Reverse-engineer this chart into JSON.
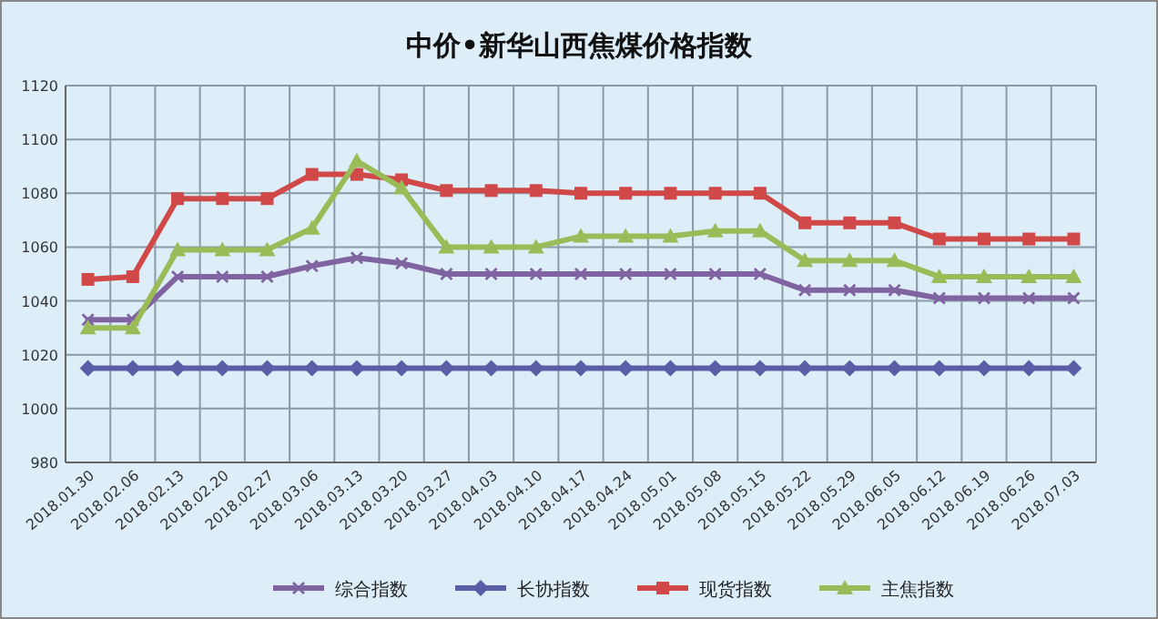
{
  "chart_data": {
    "type": "line",
    "title": "中价•新华山西焦煤价格指数",
    "categories": [
      "2018.01.30",
      "2018.02.06",
      "2018.02.13",
      "2018.02.20",
      "2018.02.27",
      "2018.03.06",
      "2018.03.13",
      "2018.03.20",
      "2018.03.27",
      "2018.04.03",
      "2018.04.10",
      "2018.04.17",
      "2018.04.24",
      "2018.05.01",
      "2018.05.08",
      "2018.05.15",
      "2018.05.22",
      "2018.05.29",
      "2018.06.05",
      "2018.06.12",
      "2018.06.19",
      "2018.06.26",
      "2018.07.03"
    ],
    "series": [
      {
        "name": "综合指数",
        "color": "#8064a2",
        "marker": "cross",
        "values": [
          1033,
          1033,
          1049,
          1049,
          1049,
          1053,
          1056,
          1054,
          1050,
          1050,
          1050,
          1050,
          1050,
          1050,
          1050,
          1050,
          1044,
          1044,
          1044,
          1041,
          1041,
          1041,
          1041
        ]
      },
      {
        "name": "长协指数",
        "color": "#5b5ea6",
        "marker": "diamond",
        "values": [
          1015,
          1015,
          1015,
          1015,
          1015,
          1015,
          1015,
          1015,
          1015,
          1015,
          1015,
          1015,
          1015,
          1015,
          1015,
          1015,
          1015,
          1015,
          1015,
          1015,
          1015,
          1015,
          1015
        ]
      },
      {
        "name": "现货指数",
        "color": "#d04848",
        "marker": "square",
        "values": [
          1048,
          1049,
          1078,
          1078,
          1078,
          1087,
          1087,
          1085,
          1081,
          1081,
          1081,
          1080,
          1080,
          1080,
          1080,
          1080,
          1069,
          1069,
          1069,
          1063,
          1063,
          1063,
          1063
        ]
      },
      {
        "name": "主焦指数",
        "color": "#9bbb59",
        "marker": "triangle",
        "values": [
          1030,
          1030,
          1059,
          1059,
          1059,
          1067,
          1092,
          1082,
          1060,
          1060,
          1060,
          1064,
          1064,
          1064,
          1066,
          1066,
          1055,
          1055,
          1055,
          1049,
          1049,
          1049,
          1049
        ]
      }
    ],
    "ylim": [
      980,
      1120
    ],
    "yticks": [
      980,
      1000,
      1020,
      1040,
      1060,
      1080,
      1100,
      1120
    ],
    "grid": true,
    "legend": "bottom"
  }
}
